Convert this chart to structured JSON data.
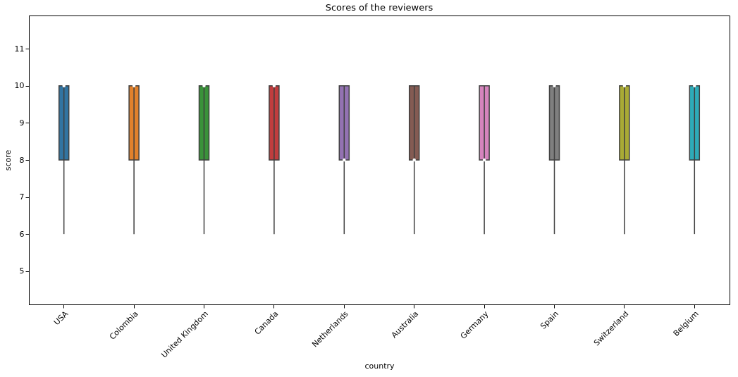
{
  "chart_data": {
    "type": "box",
    "title": "Scores of the reviewers",
    "xlabel": "country",
    "ylabel": "score",
    "categories": [
      "USA",
      "Colombia",
      "United Kingdom",
      "Canada",
      "Netherlands",
      "Australia",
      "Germany",
      "Spain",
      "Switzerland",
      "Belgium"
    ],
    "colors": [
      "#3274a1",
      "#e1812c",
      "#3a923a",
      "#c03d3e",
      "#9372b2",
      "#845b53",
      "#d684bd",
      "#7f7f7f",
      "#a9aa35",
      "#2eabb8"
    ],
    "boxes": [
      {
        "low": 6,
        "q1": 8,
        "median": 10,
        "q3": 10,
        "high": 10
      },
      {
        "low": 6,
        "q1": 8,
        "median": 10,
        "q3": 10,
        "high": 10
      },
      {
        "low": 6,
        "q1": 8,
        "median": 10,
        "q3": 10,
        "high": 10
      },
      {
        "low": 6,
        "q1": 8,
        "median": 10,
        "q3": 10,
        "high": 10
      },
      {
        "low": 6,
        "q1": 8,
        "median": 8,
        "q3": 10,
        "high": 10
      },
      {
        "low": 6,
        "q1": 8,
        "median": 8,
        "q3": 10,
        "high": 10
      },
      {
        "low": 6,
        "q1": 8,
        "median": 8,
        "q3": 10,
        "high": 10
      },
      {
        "low": 6,
        "q1": 8,
        "median": 10,
        "q3": 10,
        "high": 10
      },
      {
        "low": 6,
        "q1": 8,
        "median": 10,
        "q3": 10,
        "high": 10
      },
      {
        "low": 6,
        "q1": 8,
        "median": 10,
        "q3": 10,
        "high": 10
      }
    ],
    "ylim": [
      4.1,
      11.9
    ],
    "yticks": [
      5,
      6,
      7,
      8,
      9,
      10,
      11
    ],
    "grid": false,
    "legend": false
  }
}
